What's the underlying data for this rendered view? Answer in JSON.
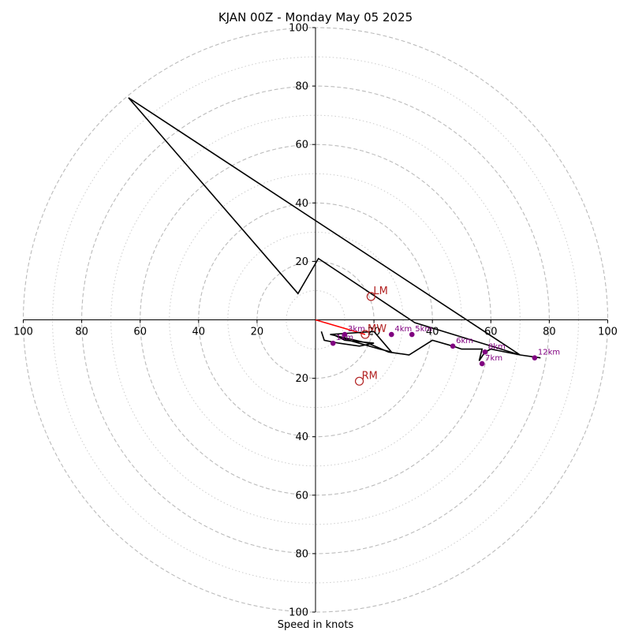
{
  "chart_data": {
    "type": "hodograph",
    "title": "KJAN 00Z - Monday May 05 2025",
    "xlabel": "Speed in knots",
    "range": [
      -100,
      100
    ],
    "ring_major": [
      20,
      40,
      60,
      80,
      100
    ],
    "ring_minor": [
      10,
      30,
      50,
      70,
      90
    ],
    "x_tick_labels": [
      "100",
      "80",
      "60",
      "40",
      "20",
      "20",
      "40",
      "60",
      "80",
      "100"
    ],
    "y_tick_labels": [
      "100",
      "80",
      "60",
      "40",
      "20",
      "20",
      "40",
      "60",
      "80",
      "100"
    ],
    "grid": true,
    "colors": {
      "trace": "#000000",
      "height_points": "#800080",
      "motion_markers": "#b22222",
      "mean_wind_line": "#ff0000",
      "grid": "#bbbbbb"
    },
    "trace": {
      "u": [
        2,
        3,
        8,
        15,
        20,
        10,
        6,
        8,
        22,
        26,
        20,
        5,
        18,
        25,
        32,
        40,
        47,
        50,
        57,
        56,
        58,
        60,
        70,
        -64,
        -6,
        1,
        34,
        70,
        77
      ],
      "v": [
        -4,
        -7,
        -8,
        -9,
        -8,
        -7,
        -5,
        -6,
        -10,
        -11,
        -4,
        -5,
        -8,
        -11,
        -12,
        -7,
        -9,
        -10,
        -10,
        -14,
        -11,
        -10,
        -12,
        76,
        9,
        21,
        -1,
        -12,
        -13
      ]
    },
    "height_points": [
      {
        "label": "1km",
        "u": 6,
        "v": -8
      },
      {
        "label": "3km",
        "u": 10,
        "v": -5
      },
      {
        "label": "4km",
        "u": 26,
        "v": -5
      },
      {
        "label": "5km",
        "u": 33,
        "v": -5
      },
      {
        "label": "6km",
        "u": 47,
        "v": -9
      },
      {
        "label": "8km",
        "u": 58,
        "v": -11
      },
      {
        "label": "7km",
        "u": 57,
        "v": -15
      },
      {
        "label": "12km",
        "u": 75,
        "v": -13
      }
    ],
    "storm_motion": [
      {
        "label": "LM",
        "u": 19,
        "v": 8
      },
      {
        "label": "MW",
        "u": 17,
        "v": -5
      },
      {
        "label": "RM",
        "u": 15,
        "v": -21
      }
    ],
    "mean_wind_vector": {
      "from": [
        0,
        0
      ],
      "to": [
        17,
        -5
      ]
    }
  }
}
